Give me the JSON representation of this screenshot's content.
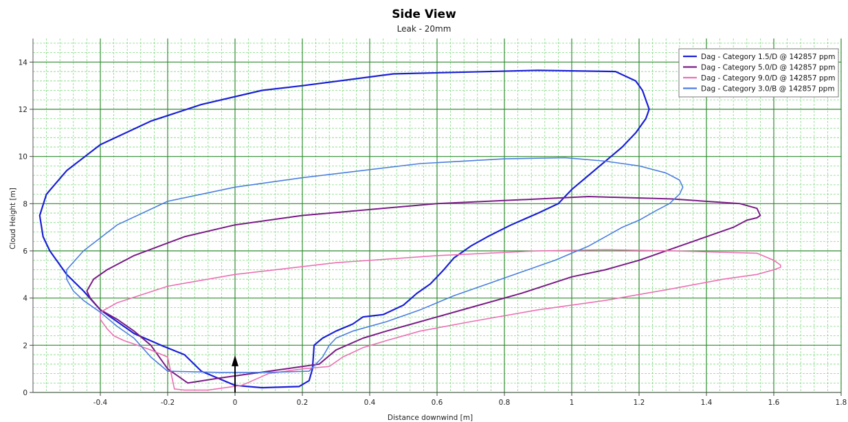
{
  "chart_data": {
    "type": "line",
    "title": "Side View",
    "subtitle": "Leak - 20mm",
    "xlabel": "Distance downwind [m]",
    "ylabel": "Cloud Height [m]",
    "xlim": [
      -0.6,
      1.8
    ],
    "ylim": [
      0,
      15
    ],
    "x_ticks": [
      -0.4,
      -0.2,
      0,
      0.2,
      0.4,
      0.6,
      0.8,
      1,
      1.2,
      1.4,
      1.6,
      1.8
    ],
    "x_tick_labels": [
      "-0.4",
      "-0.2",
      "0",
      "0.2",
      "0.4",
      "0.6",
      "0.8",
      "1",
      "1.2",
      "1.4",
      "1.6",
      "1.8"
    ],
    "y_ticks": [
      0,
      2,
      4,
      6,
      8,
      10,
      12,
      14
    ],
    "y_tick_labels": [
      "0",
      "2",
      "4",
      "6",
      "8",
      "10",
      "12",
      "14"
    ],
    "grid": true,
    "legend_position": "top-right",
    "marker": {
      "type": "arrow",
      "x": 0,
      "y_from": 0,
      "y_to": 1.4,
      "color": "#000000"
    },
    "series": [
      {
        "name": "Dag - Category 1.5/D @ 142857 ppm",
        "color": "#1a1fd6",
        "width": 2.2,
        "x": [
          0.08,
          0.19,
          0.22,
          0.23,
          0.235,
          0.26,
          0.3,
          0.35,
          0.38,
          0.44,
          0.5,
          0.54,
          0.58,
          0.62,
          0.65,
          0.7,
          0.75,
          0.82,
          0.9,
          0.96,
          1.0,
          1.05,
          1.1,
          1.15,
          1.19,
          1.22,
          1.23,
          1.22,
          1.21,
          1.19,
          1.13,
          0.9,
          0.47,
          0.2,
          0.08,
          -0.1,
          -0.25,
          -0.4,
          -0.5,
          -0.56,
          -0.58,
          -0.57,
          -0.55,
          -0.5,
          -0.45,
          -0.4,
          -0.35,
          -0.3,
          -0.22,
          -0.15,
          -0.1,
          -0.05,
          0.0,
          0.08
        ],
        "y": [
          0.2,
          0.25,
          0.5,
          1.0,
          2.0,
          2.3,
          2.6,
          2.9,
          3.2,
          3.3,
          3.7,
          4.2,
          4.6,
          5.2,
          5.7,
          6.2,
          6.6,
          7.1,
          7.6,
          8.0,
          8.6,
          9.2,
          9.8,
          10.4,
          11.0,
          11.6,
          12.0,
          12.4,
          12.8,
          13.2,
          13.6,
          13.65,
          13.5,
          13.0,
          12.8,
          12.2,
          11.5,
          10.5,
          9.4,
          8.4,
          7.5,
          6.6,
          6.0,
          5.0,
          4.3,
          3.5,
          3.0,
          2.5,
          2.0,
          1.6,
          0.9,
          0.6,
          0.3,
          0.2
        ]
      },
      {
        "name": "Dag - Category 5.0/D @ 142857 ppm",
        "color": "#7a1a86",
        "width": 2.0,
        "x": [
          -0.14,
          -0.05,
          0.05,
          0.15,
          0.25,
          0.3,
          0.38,
          0.45,
          0.55,
          0.7,
          0.85,
          1.0,
          1.1,
          1.2,
          1.3,
          1.4,
          1.48,
          1.52,
          1.55,
          1.56,
          1.55,
          1.5,
          1.3,
          1.05,
          0.9,
          0.6,
          0.2,
          0.0,
          -0.15,
          -0.3,
          -0.38,
          -0.42,
          -0.44,
          -0.43,
          -0.4,
          -0.35,
          -0.3,
          -0.25,
          -0.2,
          -0.14
        ],
        "y": [
          0.4,
          0.6,
          0.8,
          1.0,
          1.2,
          1.8,
          2.3,
          2.6,
          3.0,
          3.6,
          4.2,
          4.9,
          5.2,
          5.6,
          6.1,
          6.6,
          7.0,
          7.3,
          7.4,
          7.5,
          7.8,
          8.0,
          8.2,
          8.3,
          8.2,
          8.0,
          7.5,
          7.1,
          6.6,
          5.8,
          5.2,
          4.8,
          4.3,
          4.0,
          3.5,
          3.1,
          2.6,
          2.0,
          1.0,
          0.4
        ]
      },
      {
        "name": "Dag - Category 9.0/D @ 142857 ppm",
        "color": "#ec6fb3",
        "width": 1.6,
        "x": [
          -0.18,
          -0.15,
          -0.08,
          0.02,
          0.1,
          0.2,
          0.28,
          0.32,
          0.38,
          0.45,
          0.55,
          0.7,
          0.9,
          1.1,
          1.3,
          1.45,
          1.55,
          1.6,
          1.62,
          1.62,
          1.6,
          1.55,
          1.3,
          1.1,
          0.9,
          0.6,
          0.3,
          0.0,
          -0.2,
          -0.35,
          -0.4,
          -0.4,
          -0.38,
          -0.36,
          -0.33,
          -0.29,
          -0.25,
          -0.2,
          -0.18
        ],
        "y": [
          0.15,
          0.1,
          0.1,
          0.3,
          0.8,
          1.0,
          1.1,
          1.5,
          1.9,
          2.2,
          2.6,
          3.0,
          3.5,
          3.9,
          4.4,
          4.8,
          5.0,
          5.2,
          5.3,
          5.4,
          5.6,
          5.9,
          6.0,
          6.05,
          6.0,
          5.8,
          5.5,
          5.0,
          4.5,
          3.8,
          3.4,
          3.1,
          2.7,
          2.4,
          2.2,
          2.0,
          1.8,
          1.5,
          0.15
        ]
      },
      {
        "name": "Dag - Category 3.0/B @ 142857 ppm",
        "color": "#4a7de0",
        "width": 1.6,
        "x": [
          -0.2,
          -0.05,
          0.1,
          0.22,
          0.26,
          0.28,
          0.3,
          0.35,
          0.45,
          0.55,
          0.65,
          0.75,
          0.85,
          0.95,
          1.0,
          1.05,
          1.1,
          1.15,
          1.2,
          1.25,
          1.29,
          1.32,
          1.33,
          1.32,
          1.28,
          1.2,
          1.1,
          0.98,
          0.8,
          0.55,
          0.2,
          0.0,
          -0.2,
          -0.35,
          -0.45,
          -0.5,
          -0.5,
          -0.48,
          -0.45,
          -0.4,
          -0.35,
          -0.3,
          -0.25,
          -0.2
        ],
        "y": [
          0.9,
          0.85,
          0.85,
          0.9,
          1.5,
          2.0,
          2.3,
          2.6,
          3.0,
          3.5,
          4.1,
          4.6,
          5.1,
          5.6,
          5.9,
          6.2,
          6.6,
          7.0,
          7.3,
          7.7,
          8.0,
          8.4,
          8.7,
          9.0,
          9.3,
          9.6,
          9.8,
          9.95,
          9.9,
          9.7,
          9.1,
          8.7,
          8.1,
          7.1,
          6.0,
          5.2,
          4.8,
          4.3,
          3.9,
          3.4,
          2.8,
          2.3,
          1.5,
          0.9
        ]
      }
    ]
  }
}
